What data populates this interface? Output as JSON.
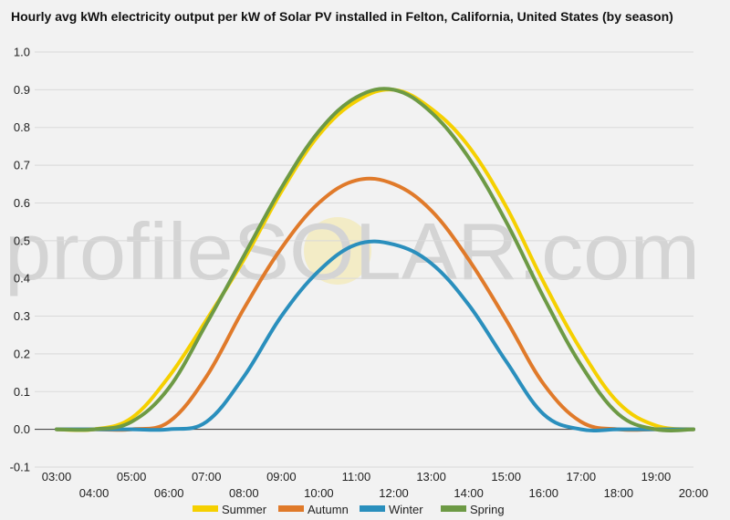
{
  "chart_data": {
    "type": "line",
    "title": "Hourly avg kWh electricity output per kW of Solar PV installed in Felton, California, United States (by season)",
    "xlabel": "",
    "ylabel": "",
    "x": [
      "03:00",
      "04:00",
      "05:00",
      "06:00",
      "07:00",
      "08:00",
      "09:00",
      "10:00",
      "11:00",
      "12:00",
      "13:00",
      "14:00",
      "15:00",
      "16:00",
      "17:00",
      "18:00",
      "19:00",
      "20:00"
    ],
    "ylim": [
      -0.1,
      1.0
    ],
    "yticks": [
      "-0.1",
      "0.0",
      "0.1",
      "0.2",
      "0.3",
      "0.4",
      "0.5",
      "0.6",
      "0.7",
      "0.8",
      "0.9",
      "1.0"
    ],
    "grid": true,
    "legend": "bottom",
    "series": [
      {
        "name": "Summer",
        "color": "#f5d000",
        "values": [
          0.0,
          0.0,
          0.03,
          0.14,
          0.29,
          0.45,
          0.63,
          0.78,
          0.87,
          0.9,
          0.85,
          0.75,
          0.59,
          0.39,
          0.21,
          0.07,
          0.01,
          0.0
        ]
      },
      {
        "name": "Autumn",
        "color": "#e07a2a",
        "values": [
          0.0,
          0.0,
          0.0,
          0.02,
          0.14,
          0.32,
          0.48,
          0.6,
          0.66,
          0.65,
          0.58,
          0.45,
          0.29,
          0.12,
          0.02,
          0.0,
          0.0,
          0.0
        ]
      },
      {
        "name": "Winter",
        "color": "#2a8fbd",
        "values": [
          0.0,
          0.0,
          0.0,
          0.0,
          0.02,
          0.14,
          0.3,
          0.42,
          0.49,
          0.49,
          0.44,
          0.33,
          0.18,
          0.04,
          0.0,
          0.0,
          0.0,
          0.0
        ]
      },
      {
        "name": "Spring",
        "color": "#6d9a45",
        "values": [
          0.0,
          0.0,
          0.02,
          0.11,
          0.28,
          0.46,
          0.64,
          0.79,
          0.88,
          0.9,
          0.84,
          0.72,
          0.55,
          0.35,
          0.17,
          0.04,
          0.0,
          0.0
        ]
      }
    ]
  },
  "watermark": {
    "text": "profileSOLAR.com"
  }
}
